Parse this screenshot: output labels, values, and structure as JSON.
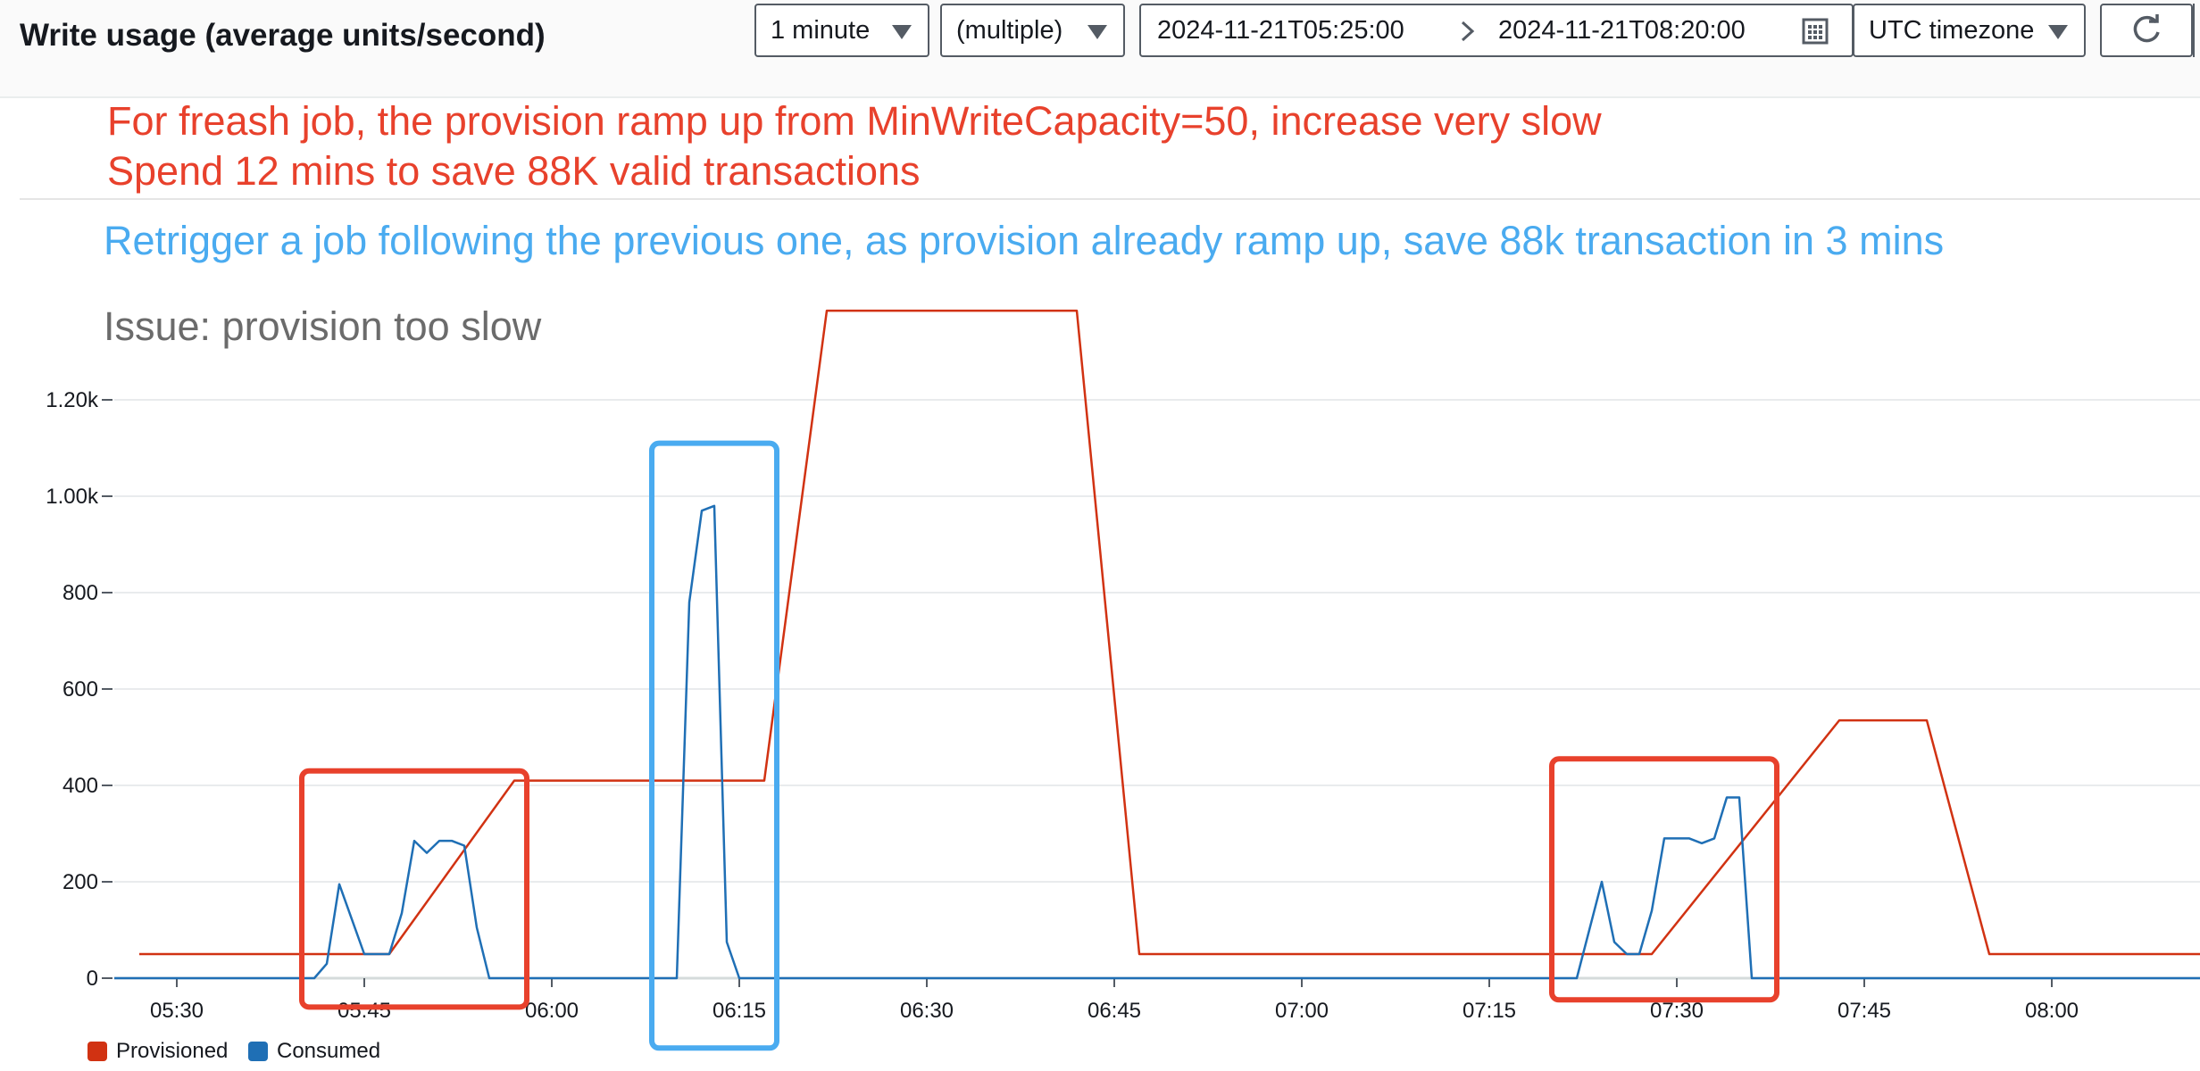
{
  "header": {
    "title": "Write usage (average units/second)",
    "period": "1 minute",
    "statistic": "(multiple)",
    "range_start": "2024-11-21T05:25:00",
    "range_end": "2024-11-21T08:20:00",
    "timezone": "UTC timezone"
  },
  "annotations": {
    "red_line1": "For freash job, the provision ramp up from MinWriteCapacity=50, increase very slow",
    "red_line2": "Spend 12 mins to save 88K valid transactions",
    "blue_line": "Retrigger a job following the previous one, as provision already ramp up, save 88k transaction in 3 mins",
    "gray_line": "Issue: provision too slow"
  },
  "legend": {
    "provisioned": "Provisioned",
    "consumed": "Consumed"
  },
  "colors": {
    "provisioned": "#d13212",
    "consumed": "#1f6fb5",
    "red_box": "#e8412c",
    "blue_box": "#4aabf0"
  },
  "icons": [
    "caret-down-icon",
    "chevron-right-icon",
    "calendar-icon",
    "refresh-icon"
  ],
  "chart_data": {
    "type": "line",
    "x_unit": "time (HH:MM, UTC)",
    "ylim": [
      0,
      1200
    ],
    "y_ticks": [
      {
        "value": 0,
        "label": "0"
      },
      {
        "value": 200,
        "label": "200"
      },
      {
        "value": 400,
        "label": "400"
      },
      {
        "value": 600,
        "label": "600"
      },
      {
        "value": 800,
        "label": "800"
      },
      {
        "value": 1000,
        "label": "1.00k"
      },
      {
        "value": 1200,
        "label": "1.20k"
      }
    ],
    "x_ticks": [
      "05:30",
      "05:45",
      "06:00",
      "06:15",
      "06:30",
      "06:45",
      "07:00",
      "07:15",
      "07:30",
      "07:45",
      "08:00"
    ],
    "grid": true,
    "legend_position": "bottom-left",
    "series": [
      {
        "name": "Provisioned",
        "points": [
          [
            "05:27",
            50
          ],
          [
            "05:45",
            50
          ],
          [
            "05:47",
            50
          ],
          [
            "05:57",
            410
          ],
          [
            "06:17",
            410
          ],
          [
            "06:22",
            1385
          ],
          [
            "06:42",
            1385
          ],
          [
            "06:47",
            50
          ],
          [
            "07:28",
            50
          ],
          [
            "07:43",
            535
          ],
          [
            "07:50",
            535
          ],
          [
            "07:55",
            50
          ],
          [
            "08:20",
            50
          ]
        ]
      },
      {
        "name": "Consumed",
        "points": [
          [
            "05:25",
            0
          ],
          [
            "05:41",
            0
          ],
          [
            "05:42",
            30
          ],
          [
            "05:43",
            195
          ],
          [
            "05:45",
            50
          ],
          [
            "05:47",
            50
          ],
          [
            "05:48",
            135
          ],
          [
            "05:49",
            285
          ],
          [
            "05:50",
            260
          ],
          [
            "05:51",
            285
          ],
          [
            "05:52",
            285
          ],
          [
            "05:53",
            275
          ],
          [
            "05:54",
            105
          ],
          [
            "05:55",
            0
          ],
          [
            "06:10",
            0
          ],
          [
            "06:11",
            780
          ],
          [
            "06:12",
            970
          ],
          [
            "06:13",
            980
          ],
          [
            "06:14",
            75
          ],
          [
            "06:15",
            0
          ],
          [
            "07:22",
            0
          ],
          [
            "07:24",
            200
          ],
          [
            "07:25",
            75
          ],
          [
            "07:26",
            50
          ],
          [
            "07:27",
            50
          ],
          [
            "07:28",
            140
          ],
          [
            "07:29",
            290
          ],
          [
            "07:31",
            290
          ],
          [
            "07:32",
            280
          ],
          [
            "07:33",
            290
          ],
          [
            "07:34",
            375
          ],
          [
            "07:35",
            375
          ],
          [
            "07:36",
            0
          ],
          [
            "08:20",
            0
          ]
        ]
      }
    ],
    "highlights": [
      {
        "color": "red",
        "x_range": [
          "05:40",
          "05:58"
        ],
        "y_range": [
          -60,
          430
        ]
      },
      {
        "color": "blue",
        "x_range": [
          "06:08",
          "06:18"
        ],
        "y_range": [
          -145,
          1110
        ]
      },
      {
        "color": "red",
        "x_range": [
          "07:20",
          "07:38"
        ],
        "y_range": [
          -45,
          455
        ]
      }
    ]
  }
}
